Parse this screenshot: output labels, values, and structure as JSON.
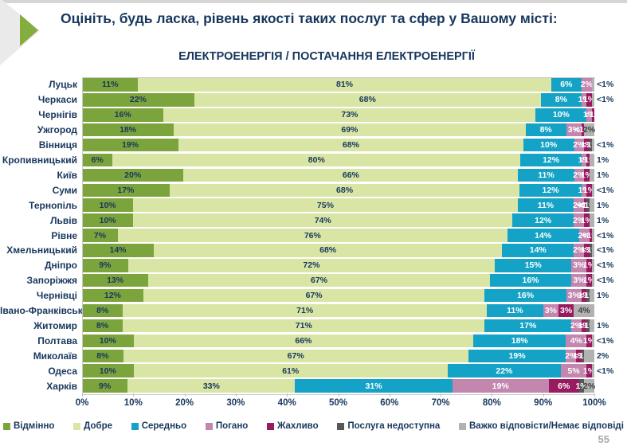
{
  "page": {
    "title": "Оцініть, будь ласка, рівень якості таких послуг та сфер у Вашому місті:",
    "subtitle": "ЕЛЕКТРОЕНЕРГІЯ / ПОСТАЧАННЯ ЕЛЕКТРОЕНЕРГІЇ",
    "page_number": "55"
  },
  "colors": {
    "title_text": "#17375D",
    "accent_green": "#83AD3C",
    "axis_line": "#C9C9C9"
  },
  "chart_data": {
    "type": "bar",
    "stacked": true,
    "orientation": "horizontal",
    "title": "ЕЛЕКТРОЕНЕРГІЯ / ПОСТАЧАННЯ ЕЛЕКТРОЕНЕРГІЇ",
    "xlim": [
      0,
      100
    ],
    "x_tick_labels": [
      "0%",
      "10%",
      "20%",
      "30%",
      "40%",
      "50%",
      "60%",
      "70%",
      "80%",
      "90%",
      "100%"
    ],
    "legend_position": "bottom",
    "legend": [
      {
        "key": "vidminno",
        "label": "Відмінно",
        "color": "#7CA43C",
        "text_color": "#17375D"
      },
      {
        "key": "dobre",
        "label": "Добре",
        "color": "#D8E5A4",
        "text_color": "#17375D"
      },
      {
        "key": "seredno",
        "label": "Середньо",
        "color": "#14A3C6",
        "text_color": "#FFFFFF"
      },
      {
        "key": "pohano",
        "label": "Погано",
        "color": "#C286AF",
        "text_color": "#FFFFFF"
      },
      {
        "key": "zhakhlyvo",
        "label": "Жахливо",
        "color": "#981A60",
        "text_color": "#FFFFFF"
      },
      {
        "key": "nedostupna",
        "label": "Послуга недоступна",
        "color": "#575757",
        "text_color": "#FFFFFF"
      },
      {
        "key": "vazhko",
        "label": "Важко відповісти/Немає відповіді",
        "color": "#B2B2B2",
        "text_color": "#3F3F3F"
      }
    ],
    "rows": [
      {
        "city": "Луцьк",
        "segments": [
          [
            "vidminno",
            11,
            "11%"
          ],
          [
            "dobre",
            81,
            "81%"
          ],
          [
            "seredno",
            6,
            "6%"
          ],
          [
            "pohano",
            2,
            "2%"
          ],
          [
            "vazhko",
            0.5,
            "<1%",
            "out"
          ]
        ]
      },
      {
        "city": "Черкаси",
        "segments": [
          [
            "vidminno",
            22,
            "22%"
          ],
          [
            "dobre",
            68,
            "68%"
          ],
          [
            "seredno",
            8,
            "8%"
          ],
          [
            "pohano",
            1,
            "1%"
          ],
          [
            "zhakhlyvo",
            1,
            "1%"
          ],
          [
            "vazhko",
            0.5,
            "<1%",
            "out"
          ]
        ]
      },
      {
        "city": "Чернігів",
        "segments": [
          [
            "vidminno",
            16,
            "16%"
          ],
          [
            "dobre",
            73,
            "73%"
          ],
          [
            "seredno",
            10,
            "10%"
          ],
          [
            "pohano",
            1,
            "1%"
          ],
          [
            "zhakhlyvo",
            0.5,
            "<1%"
          ]
        ]
      },
      {
        "city": "Ужгород",
        "segments": [
          [
            "vidminno",
            18,
            "18%"
          ],
          [
            "dobre",
            69,
            "69%"
          ],
          [
            "seredno",
            8,
            "8%"
          ],
          [
            "pohano",
            3,
            "3%"
          ],
          [
            "zhakhlyvo",
            0.5,
            "<1%"
          ],
          [
            "vazhko",
            2,
            "2%"
          ]
        ]
      },
      {
        "city": "Вінниця",
        "segments": [
          [
            "vidminno",
            19,
            "19%"
          ],
          [
            "dobre",
            68,
            "68%"
          ],
          [
            "seredno",
            10,
            "10%"
          ],
          [
            "pohano",
            2,
            "2%"
          ],
          [
            "zhakhlyvo",
            1,
            "1%"
          ],
          [
            "nedostupna",
            0.5,
            "<1%"
          ],
          [
            "vazhko",
            0.5,
            "<1%",
            "out"
          ]
        ]
      },
      {
        "city": "Кропивницький",
        "segments": [
          [
            "vidminno",
            6,
            "6%"
          ],
          [
            "dobre",
            80,
            "80%"
          ],
          [
            "seredno",
            12,
            "12%"
          ],
          [
            "pohano",
            1,
            "1%"
          ],
          [
            "zhakhlyvo",
            0.5,
            "<1%"
          ],
          [
            "vazhko",
            1,
            "1%",
            "out"
          ]
        ]
      },
      {
        "city": "Київ",
        "segments": [
          [
            "vidminno",
            20,
            "20%"
          ],
          [
            "dobre",
            66,
            "66%"
          ],
          [
            "seredno",
            11,
            "11%"
          ],
          [
            "pohano",
            2,
            "2%"
          ],
          [
            "zhakhlyvo",
            1,
            "1%"
          ],
          [
            "vazhko",
            1,
            "1%",
            "out"
          ]
        ]
      },
      {
        "city": "Суми",
        "segments": [
          [
            "vidminno",
            17,
            "17%"
          ],
          [
            "dobre",
            68,
            "68%"
          ],
          [
            "seredno",
            12,
            "12%"
          ],
          [
            "pohano",
            1,
            "1%"
          ],
          [
            "zhakhlyvo",
            1,
            "1%"
          ],
          [
            "vazhko",
            0.5,
            "<1%",
            "out"
          ]
        ]
      },
      {
        "city": "Тернопіль",
        "segments": [
          [
            "vidminno",
            10,
            "10%"
          ],
          [
            "dobre",
            75,
            "75%"
          ],
          [
            "seredno",
            11,
            "11%"
          ],
          [
            "pohano",
            2,
            "2%"
          ],
          [
            "zhakhlyvo",
            0.5,
            "<1%"
          ],
          [
            "nedostupna",
            0.5,
            "<1%"
          ],
          [
            "vazhko",
            1,
            "1%",
            "out"
          ]
        ]
      },
      {
        "city": "Львів",
        "segments": [
          [
            "vidminno",
            10,
            "10%"
          ],
          [
            "dobre",
            74,
            "74%"
          ],
          [
            "seredno",
            12,
            "12%"
          ],
          [
            "pohano",
            2,
            "2%"
          ],
          [
            "zhakhlyvo",
            1,
            "1%"
          ],
          [
            "vazhko",
            1,
            "1%",
            "out"
          ]
        ]
      },
      {
        "city": "Рівне",
        "segments": [
          [
            "vidminno",
            7,
            "7%"
          ],
          [
            "dobre",
            76,
            "76%"
          ],
          [
            "seredno",
            14,
            "14%"
          ],
          [
            "pohano",
            2,
            "2%"
          ],
          [
            "zhakhlyvo",
            0.5,
            "<1%"
          ],
          [
            "vazhko",
            0.5,
            "<1%",
            "out"
          ]
        ]
      },
      {
        "city": "Хмельницький",
        "segments": [
          [
            "vidminno",
            14,
            "14%"
          ],
          [
            "dobre",
            68,
            "68%"
          ],
          [
            "seredno",
            14,
            "14%"
          ],
          [
            "pohano",
            2,
            "2%"
          ],
          [
            "zhakhlyvo",
            1,
            "1%"
          ],
          [
            "nedostupna",
            0.5,
            "<1%"
          ],
          [
            "vazhko",
            0.5,
            "<1%",
            "out"
          ]
        ]
      },
      {
        "city": "Дніпро",
        "segments": [
          [
            "vidminno",
            9,
            "9%"
          ],
          [
            "dobre",
            72,
            "72%"
          ],
          [
            "seredno",
            15,
            "15%"
          ],
          [
            "pohano",
            3,
            "3%"
          ],
          [
            "zhakhlyvo",
            1,
            "1%"
          ],
          [
            "vazhko",
            0.5,
            "<1%",
            "out"
          ]
        ]
      },
      {
        "city": "Запоріжжя",
        "segments": [
          [
            "vidminno",
            13,
            "13%"
          ],
          [
            "dobre",
            67,
            "67%"
          ],
          [
            "seredno",
            16,
            "16%"
          ],
          [
            "pohano",
            3,
            "3%"
          ],
          [
            "zhakhlyvo",
            1,
            "1%"
          ],
          [
            "vazhko",
            0.5,
            "<1%",
            "out"
          ]
        ]
      },
      {
        "city": "Чернівці",
        "segments": [
          [
            "vidminno",
            12,
            "12%"
          ],
          [
            "dobre",
            67,
            "67%"
          ],
          [
            "seredno",
            16,
            "16%"
          ],
          [
            "pohano",
            3,
            "3%"
          ],
          [
            "zhakhlyvo",
            1,
            "1%"
          ],
          [
            "nedostupna",
            0.5,
            "<1%"
          ],
          [
            "vazhko",
            1,
            "1%",
            "out"
          ]
        ]
      },
      {
        "city": "Івано-Франківськ",
        "segments": [
          [
            "vidminno",
            8,
            "8%"
          ],
          [
            "dobre",
            71,
            "71%"
          ],
          [
            "seredno",
            11,
            "11%"
          ],
          [
            "pohano",
            3,
            "3%"
          ],
          [
            "zhakhlyvo",
            3,
            "3%"
          ],
          [
            "vazhko",
            4,
            "4%"
          ]
        ]
      },
      {
        "city": "Житомир",
        "segments": [
          [
            "vidminno",
            8,
            "8%"
          ],
          [
            "dobre",
            71,
            "71%"
          ],
          [
            "seredno",
            17,
            "17%"
          ],
          [
            "pohano",
            2,
            "2%"
          ],
          [
            "zhakhlyvo",
            1,
            "1%"
          ],
          [
            "nedostupna",
            0.5,
            "<1%"
          ],
          [
            "vazhko",
            1,
            "1%",
            "out"
          ]
        ]
      },
      {
        "city": "Полтава",
        "segments": [
          [
            "vidminno",
            10,
            "10%"
          ],
          [
            "dobre",
            66,
            "66%"
          ],
          [
            "seredno",
            18,
            "18%"
          ],
          [
            "pohano",
            4,
            "4%"
          ],
          [
            "zhakhlyvo",
            1,
            "1%"
          ],
          [
            "vazhko",
            0.5,
            "<1%",
            "out"
          ]
        ]
      },
      {
        "city": "Миколаїв",
        "segments": [
          [
            "vidminno",
            8,
            "8%"
          ],
          [
            "dobre",
            67,
            "67%"
          ],
          [
            "seredno",
            19,
            "19%"
          ],
          [
            "pohano",
            2,
            "2%"
          ],
          [
            "zhakhlyvo",
            1,
            "1%"
          ],
          [
            "nedostupna",
            0.5,
            "<1%"
          ],
          [
            "vazhko",
            2,
            "2%",
            "out"
          ]
        ]
      },
      {
        "city": "Одеса",
        "segments": [
          [
            "vidminno",
            10,
            "10%"
          ],
          [
            "dobre",
            61,
            "61%"
          ],
          [
            "seredno",
            22,
            "22%"
          ],
          [
            "pohano",
            5,
            "5%"
          ],
          [
            "zhakhlyvo",
            1,
            "1%"
          ],
          [
            "vazhko",
            0.5,
            "<1%",
            "out"
          ]
        ]
      },
      {
        "city": "Харків",
        "segments": [
          [
            "vidminno",
            9,
            "9%"
          ],
          [
            "dobre",
            33,
            "33%"
          ],
          [
            "seredno",
            31,
            "31%"
          ],
          [
            "pohano",
            19,
            "19%"
          ],
          [
            "zhakhlyvo",
            6,
            "6%"
          ],
          [
            "nedostupna",
            1,
            "1%"
          ],
          [
            "vazhko",
            2,
            "2%"
          ]
        ]
      }
    ]
  }
}
